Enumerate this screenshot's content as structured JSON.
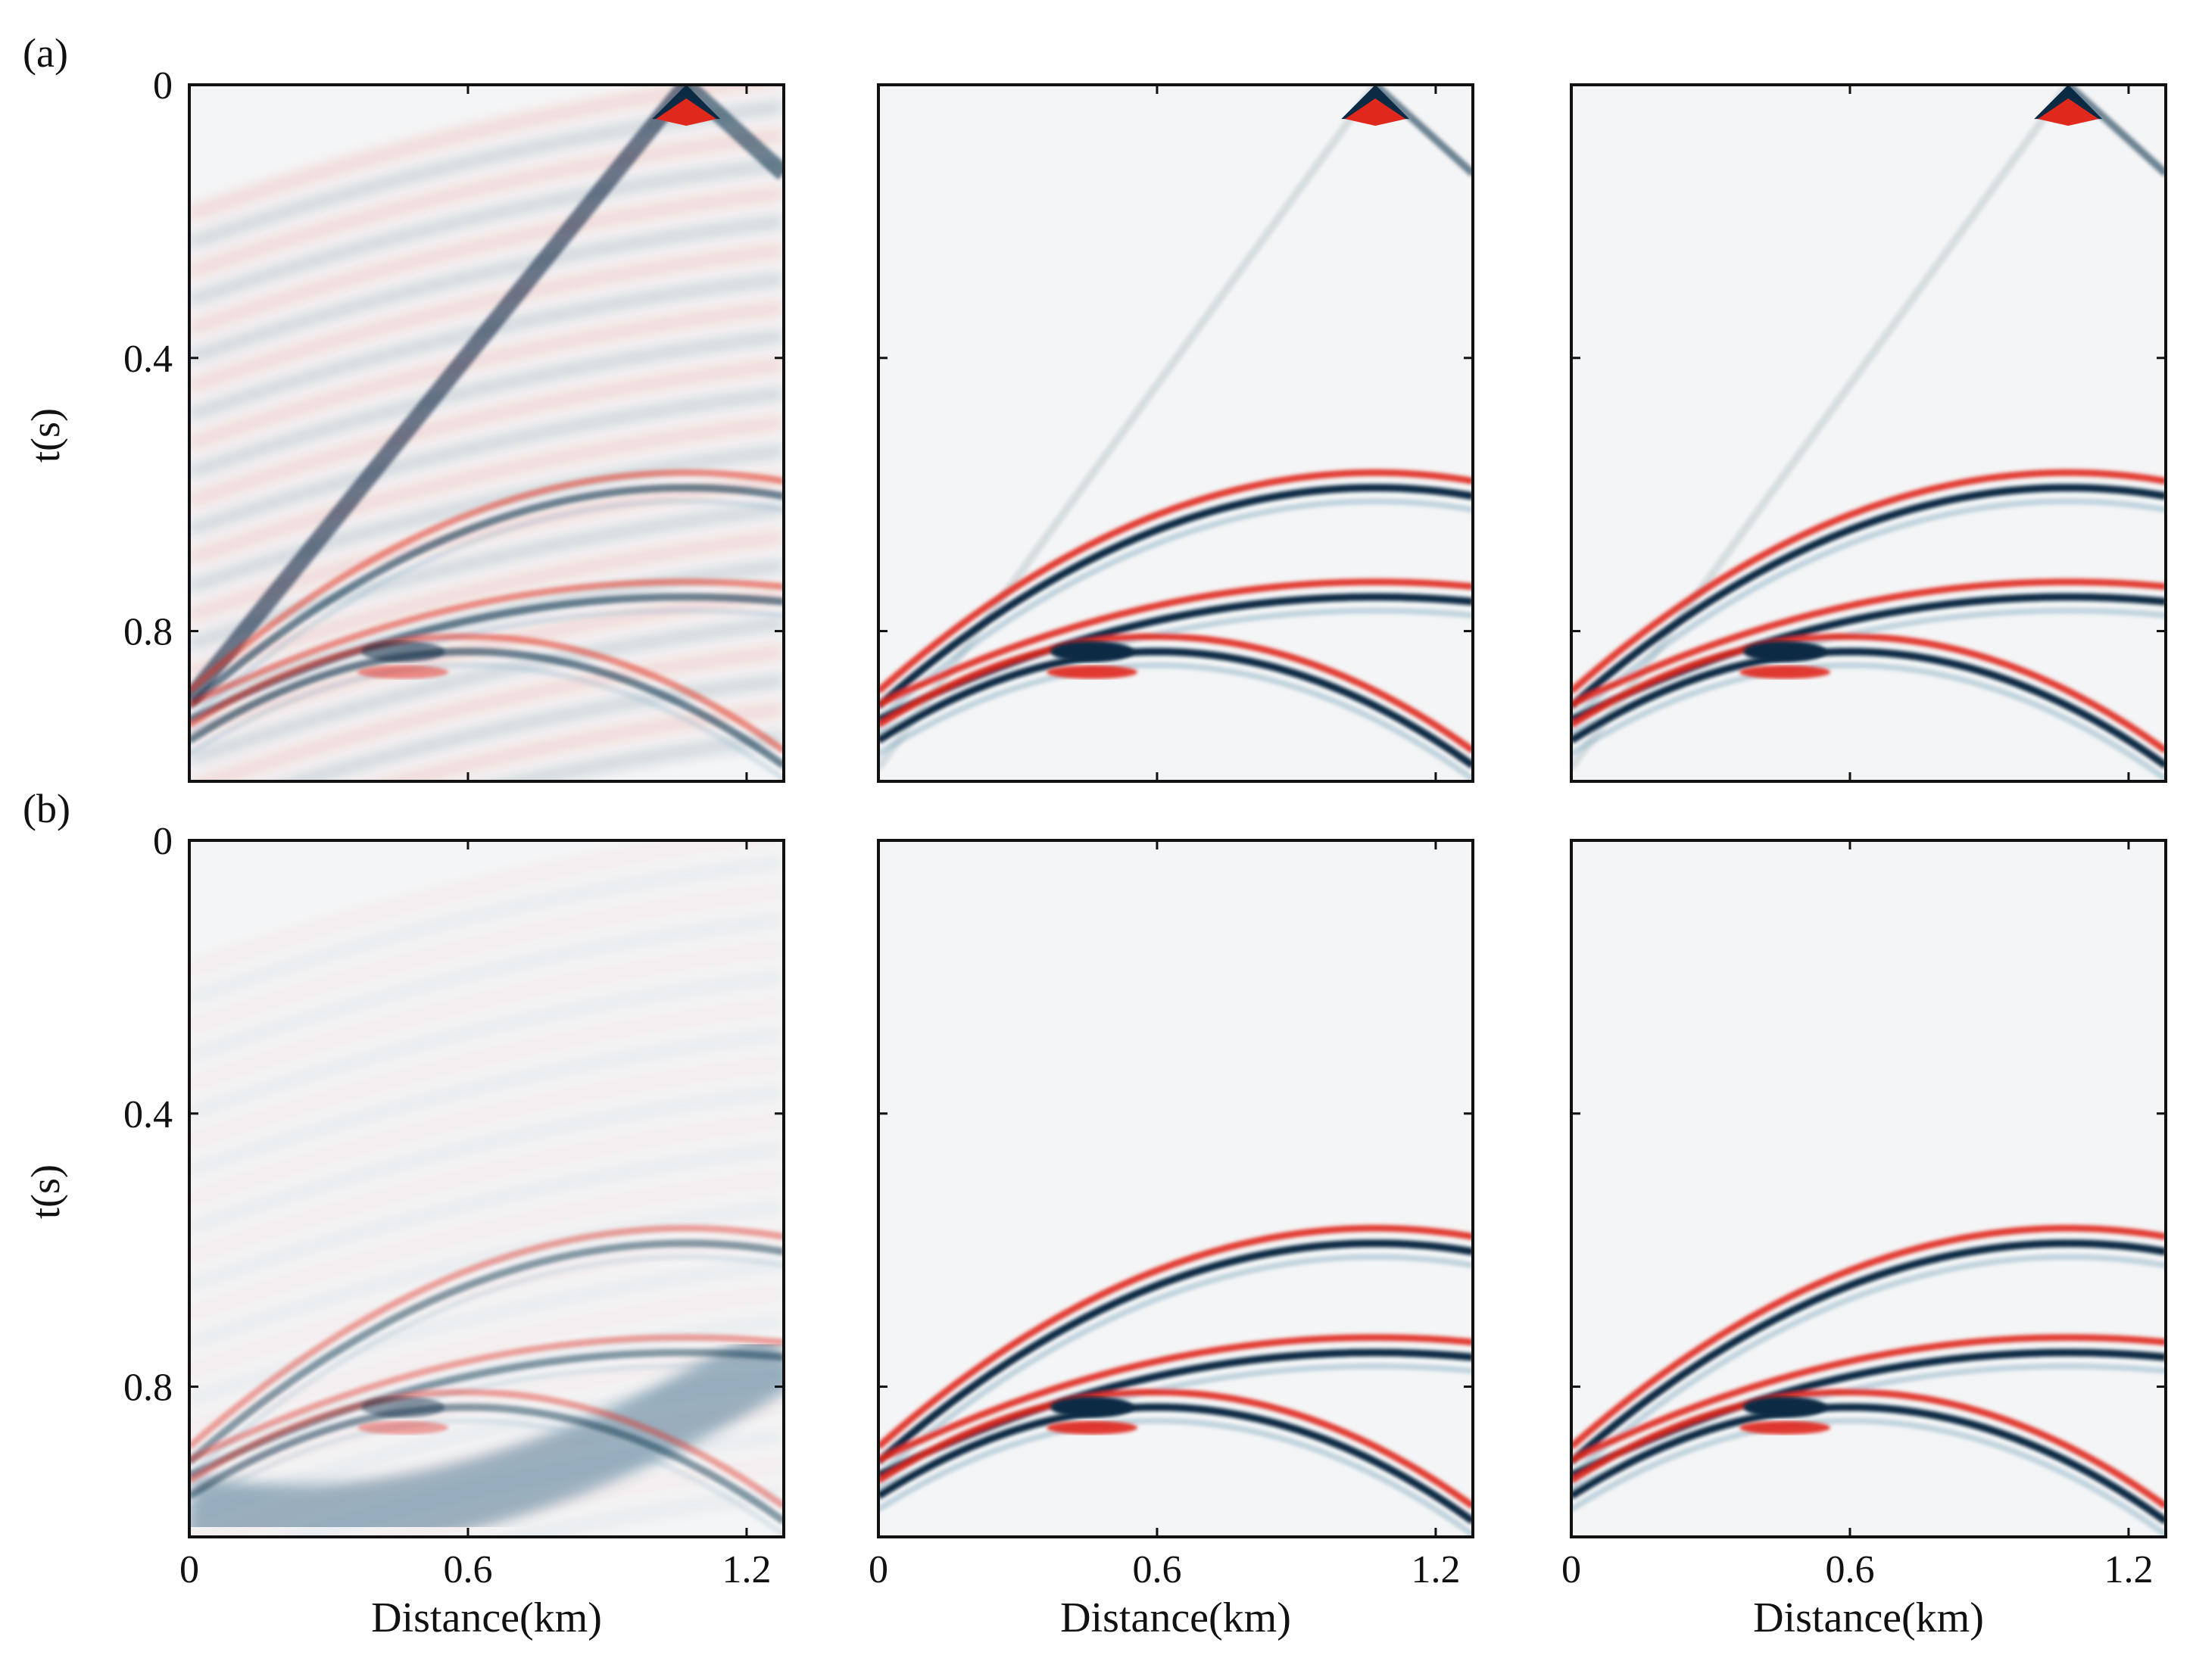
{
  "rows": [
    {
      "label": "(a)"
    },
    {
      "label": "(b)"
    }
  ],
  "colors": {
    "positive": "#e0281c",
    "negative": "#0b2a44",
    "neutral": "#f4f5f6",
    "axis": "#111111"
  },
  "chart_data": {
    "type": "heatmap",
    "description_axes": "Seismic shot gathers, 2 rows x 3 panels, red/blue diverging amplitude colormap",
    "xlabel": "Distance(km)",
    "ylabel": "t(s)",
    "xlim": [
      0,
      1.28
    ],
    "ylim": [
      1.02,
      0
    ],
    "xticks": [
      0,
      0.6,
      1.2
    ],
    "xtick_labels": [
      "0",
      "0.6",
      "1.2"
    ],
    "yticks": [
      0,
      0.4,
      0.8
    ],
    "ytick_labels": [
      "0",
      "0.4",
      "0.8"
    ],
    "source_position_km": 1.07,
    "reflectors": [
      {
        "apex_x_km": 1.07,
        "apex_t_s": 0.58,
        "t_at_x0_s": 0.9
      },
      {
        "apex_x_km": 1.07,
        "apex_t_s": 0.74,
        "t_at_x0_s": 0.92
      },
      {
        "apex_x_km": 0.6,
        "apex_t_s": 0.82,
        "t_at_x0_s": 0.95
      }
    ]
  }
}
